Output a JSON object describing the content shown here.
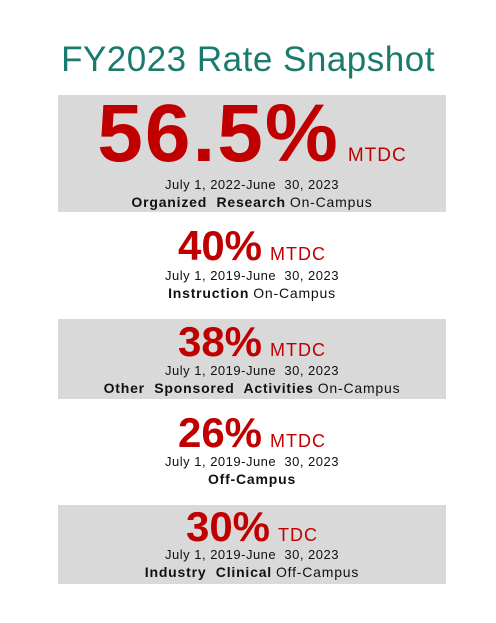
{
  "title": "FY2023 Rate Snapshot",
  "colors": {
    "title": "#1a7a6e",
    "rate": "#c00000",
    "panel_shade": "#d9d9d9"
  },
  "rates": [
    {
      "percent": "56.5%",
      "base": "MTDC",
      "period": "July 1, 2022-June  30, 2023",
      "category": "Organized  Research",
      "location": "On-Campus"
    },
    {
      "percent": "40%",
      "base": "MTDC",
      "period": "July 1, 2019-June  30, 2023",
      "category": "Instruction",
      "location": "On-Campus"
    },
    {
      "percent": "38%",
      "base": "MTDC",
      "period": "July 1, 2019-June  30, 2023",
      "category": "Other  Sponsored  Activities",
      "location": "On-Campus"
    },
    {
      "percent": "26%",
      "base": "MTDC",
      "period": "July 1, 2019-June  30, 2023",
      "category": "Off-Campus",
      "location": ""
    },
    {
      "percent": "30%",
      "base": "TDC",
      "period": "July 1, 2019-June  30, 2023",
      "category": "Industry  Clinical",
      "location": "Off-Campus"
    }
  ]
}
